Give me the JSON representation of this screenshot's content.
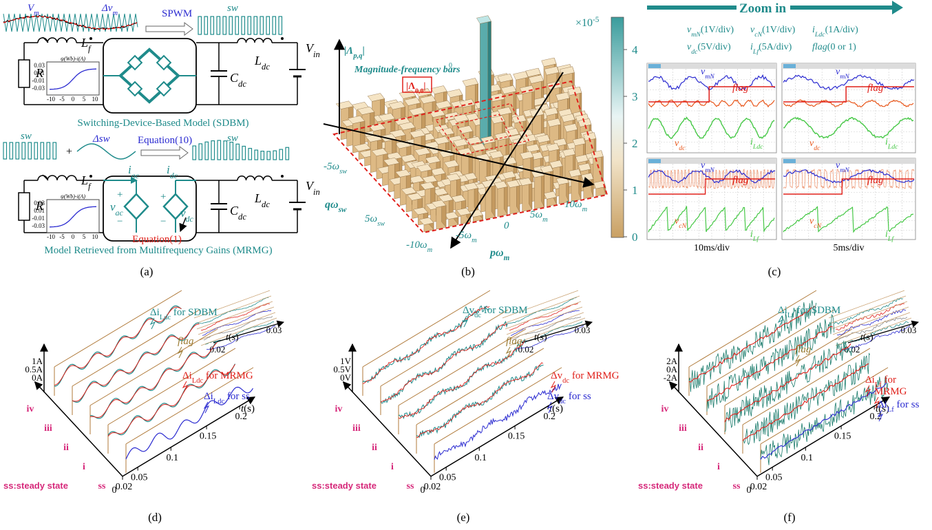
{
  "panel_a": {
    "waveform_labels": {
      "vm": {
        "base": "V",
        "sub": "m"
      },
      "dvm": {
        "base": "Δv",
        "sub": "m"
      },
      "spwm": "SPWM",
      "sw": "sw"
    },
    "sdbm_circuit": {
      "r": "R",
      "lf": {
        "base": "L",
        "sub": "f"
      },
      "cdc": {
        "base": "C",
        "sub": "dc"
      },
      "ldc": {
        "base": "L",
        "sub": "dc"
      },
      "vin": {
        "base": "V",
        "sub": "in"
      },
      "inset": {
        "title": "ψ(Wb)-i(A)",
        "yticks": [
          "0.03",
          "0.01",
          "-0.01",
          "-0.03"
        ],
        "xticks": [
          "-10",
          "-5",
          "0",
          "5",
          "10"
        ]
      }
    },
    "sdbm_caption": "Switching-Device-Based Model (SDBM)",
    "mrmg_waveform_labels": {
      "sw_left": "sw",
      "plus": "+",
      "dsw": "Δsw",
      "equation": "Equation(10)",
      "sw_right": "sw"
    },
    "mrmg_circuit": {
      "r": "R",
      "lf": {
        "base": "L",
        "sub": "f"
      },
      "iac": {
        "base": "i",
        "sub": "ac"
      },
      "idc": {
        "base": "i",
        "sub": "dc"
      },
      "vac": {
        "base": "v",
        "sub": "ac"
      },
      "vdc": {
        "base": "v",
        "sub": "dc"
      },
      "ac_plus": "+",
      "ac_minus": "−",
      "dc_plus": "+",
      "dc_minus": "−",
      "cdc": {
        "base": "C",
        "sub": "dc"
      },
      "ldc": {
        "base": "L",
        "sub": "dc"
      },
      "vin": {
        "base": "V",
        "sub": "in"
      },
      "inset": {
        "title": "ψ(Wb)-i(A)",
        "yticks": [
          "0.03",
          "0.01",
          "-0.01",
          "-0.03"
        ],
        "xticks": [
          "-10",
          "-5",
          "0",
          "5",
          "10"
        ]
      },
      "equation": "Equation(1)"
    },
    "mrmg_caption": "Model Retrieved from Multifrequency Gains (MRMG)",
    "label": "(a)"
  },
  "panel_b": {
    "z_axis": {
      "base": "|Λ",
      "sub": "p,q",
      "after": "|"
    },
    "annotation": "Magnitude-frequency bars",
    "center_bar": {
      "base": "|Λ",
      "sub": "0,0",
      "after": "|"
    },
    "center_marker": "0",
    "q_axis": {
      "base": "qω",
      "sub": "sw"
    },
    "q_ticks": [
      {
        "base": "-5ω",
        "sub": "sw"
      },
      {
        "base": "5ω",
        "sub": "sw"
      }
    ],
    "p_axis": {
      "base": "pω",
      "sub": "m"
    },
    "p_ticks": [
      {
        "base": "-10ω",
        "sub": "m"
      },
      {
        "base": "-5ω",
        "sub": "m"
      },
      "0",
      {
        "base": "5ω",
        "sub": "m"
      },
      {
        "base": "10ω",
        "sub": "m"
      }
    ],
    "colorbar": {
      "exponent": {
        "base": "×10",
        "sup": "-5"
      },
      "ticks": [
        "4",
        "3",
        "2",
        "1",
        "0"
      ]
    },
    "label": "(b)"
  },
  "panel_c": {
    "zoom": "Zoom in",
    "legend": [
      {
        "base": "v",
        "sub": "mN",
        "after": "(1V/div)"
      },
      {
        "base": "v",
        "sub": "cN",
        "after": "(1V/div)"
      },
      {
        "base": "i",
        "sub": "Ldc",
        "after": "(1A/div)"
      },
      {
        "base": "v",
        "sub": "dc",
        "after": "(5V/div)"
      },
      {
        "base": "i",
        "sub": "Lf",
        "after": "(5A/div)"
      },
      {
        "base": "flag",
        "after": "(0 or 1)"
      }
    ],
    "screens": [
      {
        "vmn": {
          "base": "v",
          "sub": "mN"
        },
        "flag": "flag",
        "lower": {
          "base": "v",
          "sub": "dc"
        },
        "current": {
          "base": "i",
          "sub": "Ldc"
        }
      },
      {
        "vmn": {
          "base": "v",
          "sub": "mN"
        },
        "flag": "flag",
        "lower": {
          "base": "v",
          "sub": "dc"
        },
        "current": {
          "base": "i",
          "sub": "Ldc"
        }
      },
      {
        "vmn": {
          "base": "v",
          "sub": "mN"
        },
        "flag": "flag",
        "lower": {
          "base": "v",
          "sub": "cN"
        },
        "current": {
          "base": "i",
          "sub": "Lf"
        }
      },
      {
        "vmn": {
          "base": "v",
          "sub": "mN"
        },
        "flag": "flag",
        "lower": {
          "base": "v",
          "sub": "cN"
        },
        "current": {
          "base": "i",
          "sub": "Lf"
        }
      }
    ],
    "time_divs": [
      "10ms/div",
      "5ms/div"
    ],
    "label": "(c)"
  },
  "panel_d": {
    "sdbm": {
      "base": "Δi",
      "sub": "Ldc",
      "after": " for SDBM"
    },
    "flag": "flag",
    "mrmg": {
      "base": "Δi",
      "sub": "Ldc",
      "after": " for MRMG"
    },
    "ss": {
      "base": "Δi",
      "sub": "Ldc",
      "after": " for ss"
    },
    "yticks": [
      "1A",
      "0.5A",
      "0A"
    ],
    "rows": [
      "iv",
      "iii",
      "ii",
      "i",
      "ss"
    ],
    "xticks": [
      "0",
      "0.02",
      "0.05",
      "0.1",
      "0.15",
      "0.2"
    ],
    "xlabel": {
      "base": "t",
      "after": "(s)"
    },
    "inset_xticks": [
      "0.02",
      "0.03"
    ],
    "inset_xlabel": {
      "base": "t",
      "after": "(s)"
    },
    "note": "ss:steady state",
    "label": "(d)"
  },
  "panel_e": {
    "sdbm": {
      "base": "Δv",
      "sub": "dc",
      "after": " for SDBM"
    },
    "flag": "flag",
    "mrmg": {
      "base": "Δv",
      "sub": "dc",
      "after": " for MRMG"
    },
    "ss": {
      "base": "Δv",
      "sub": "dc",
      "after": " for ss"
    },
    "yticks": [
      "1V",
      "0.5V",
      "0V"
    ],
    "rows": [
      "iv",
      "iii",
      "ii",
      "i",
      "ss"
    ],
    "xticks": [
      "0",
      "0.02",
      "0.05",
      "0.1",
      "0.15",
      "0.2"
    ],
    "xlabel": {
      "base": "t",
      "after": "(s)"
    },
    "inset_xticks": [
      "0.02",
      "0.03"
    ],
    "inset_xlabel": {
      "base": "t",
      "after": "(s)"
    },
    "note": "ss:steady state",
    "label": "(e)"
  },
  "panel_f": {
    "sdbm": {
      "base": "Δi",
      "sub": "Lf",
      "after": " for SDBM"
    },
    "flag": "flag",
    "mrmg": {
      "base": "Δi",
      "sub": "Lf",
      "after": " for"
    },
    "mrmg_line2": "MRMG",
    "ss": {
      "base": "Δi",
      "sub": "Lf",
      "after": " for ss"
    },
    "yticks": [
      "2A",
      "0A",
      "-2A"
    ],
    "rows": [
      "iv",
      "iii",
      "ii",
      "i",
      "ss"
    ],
    "xticks": [
      "0",
      "0.02",
      "0.05",
      "0.1",
      "0.15",
      "0.2"
    ],
    "xlabel": {
      "base": "t",
      "after": "(s)"
    },
    "inset_xticks": [
      "0.02",
      "0.03"
    ],
    "inset_xlabel": {
      "base": "t",
      "after": "(s)"
    },
    "note": "ss:steady state",
    "label": "(f)"
  }
}
